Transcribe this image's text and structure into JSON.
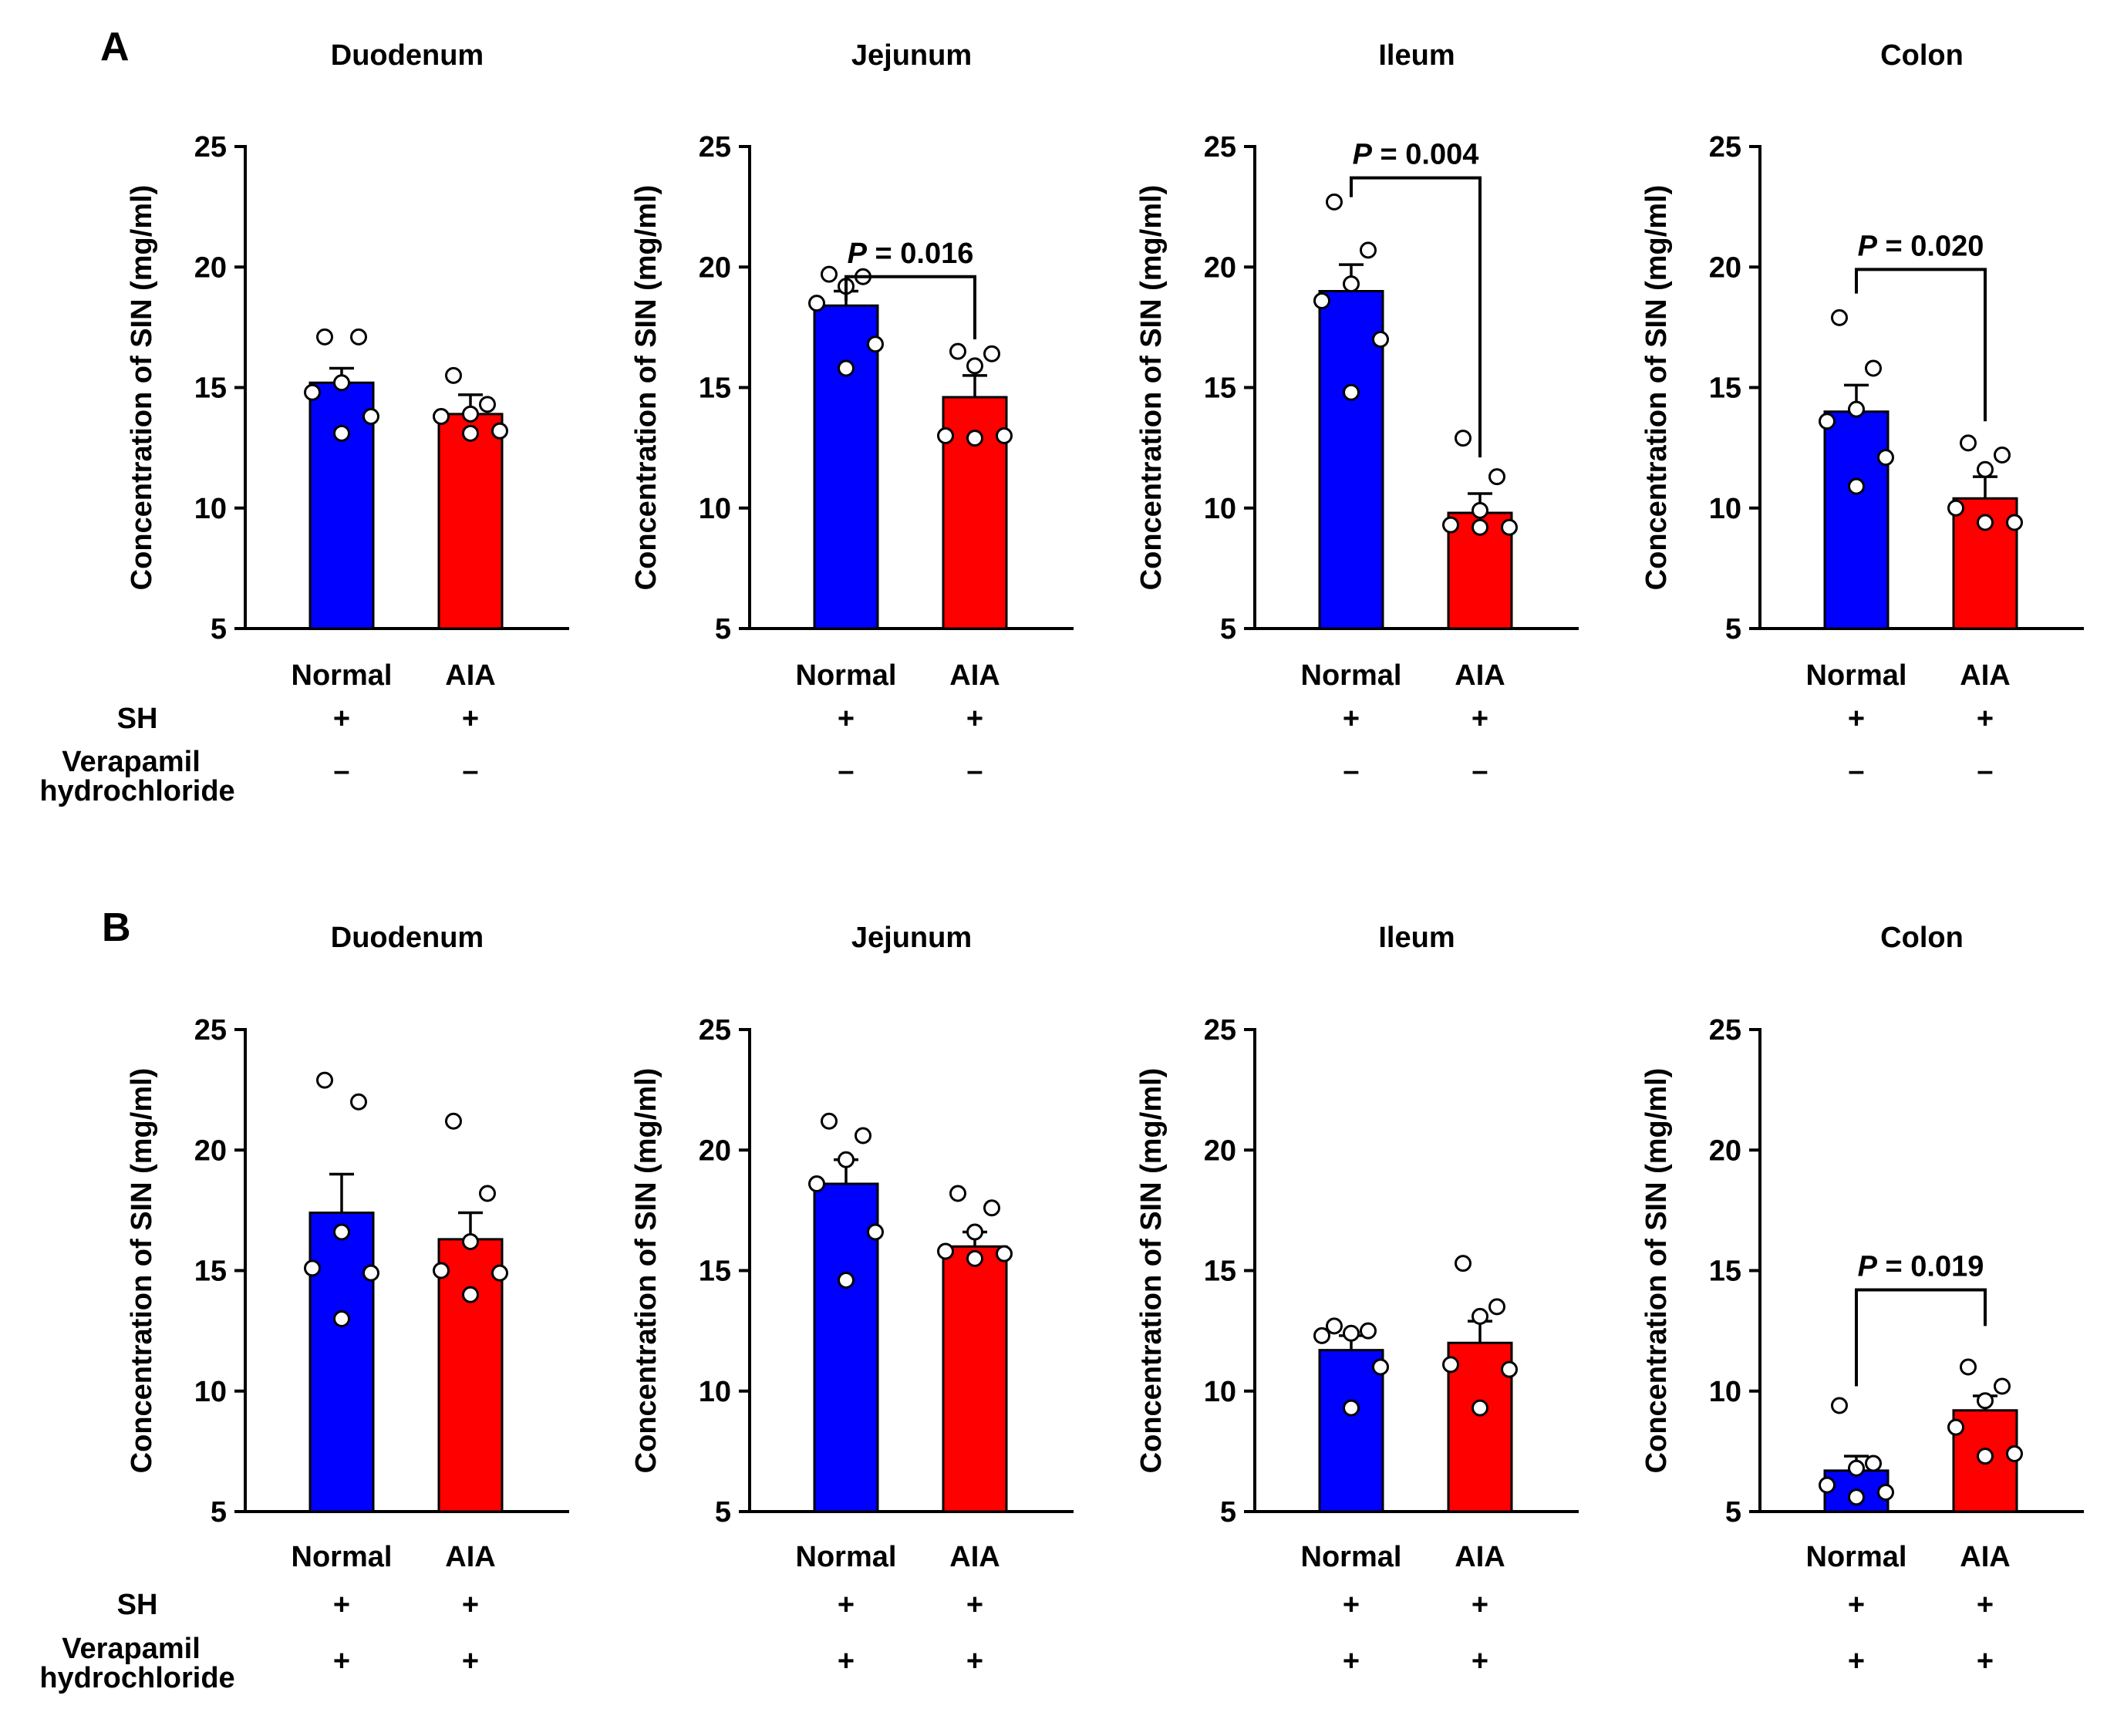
{
  "colors": {
    "normal": "#0000ff",
    "aia": "#ff0000",
    "axis": "#000000",
    "point_fill": "#ffffff"
  },
  "row_labels": {
    "sh": "SH",
    "verapamil_line1": "Verapamil",
    "verapamil_line2": "hydrochloride"
  },
  "chart_data": [
    {
      "panel": "A",
      "type": "bar",
      "title": "Duodenum",
      "ylabel": "Concentration of SIN (mg/ml)",
      "ylim": [
        5,
        25
      ],
      "yticks": [
        5,
        10,
        15,
        20,
        25
      ],
      "categories": [
        "Normal",
        "AIA"
      ],
      "values": [
        15.2,
        13.9
      ],
      "sem": [
        0.6,
        0.8
      ],
      "points": [
        [
          17.1,
          17.1,
          15.2,
          14.8,
          13.8,
          13.1
        ],
        [
          15.5,
          14.3,
          13.9,
          13.8,
          13.2,
          13.1
        ]
      ],
      "sh": [
        "+",
        "+"
      ],
      "verapamil": [
        "–",
        "–"
      ],
      "significance": null
    },
    {
      "panel": "A",
      "type": "bar",
      "title": "Jejunum",
      "ylabel": "Concentration of SIN (mg/ml)",
      "ylim": [
        5,
        25
      ],
      "yticks": [
        5,
        10,
        15,
        20,
        25
      ],
      "categories": [
        "Normal",
        "AIA"
      ],
      "values": [
        18.4,
        14.6
      ],
      "sem": [
        0.6,
        0.9
      ],
      "points": [
        [
          19.7,
          19.6,
          19.2,
          18.5,
          16.8,
          15.8
        ],
        [
          16.5,
          16.4,
          15.9,
          13.0,
          13.0,
          12.9
        ]
      ],
      "sh": [
        "+",
        "+"
      ],
      "verapamil": [
        "–",
        "–"
      ],
      "significance": {
        "prefix": "P",
        "text": " = 0.016",
        "bracket_y": 19.6,
        "end_y": [
          18.6,
          17.0
        ]
      }
    },
    {
      "panel": "A",
      "type": "bar",
      "title": "Ileum",
      "ylabel": "Concentration of SIN (mg/ml)",
      "ylim": [
        5,
        25
      ],
      "yticks": [
        5,
        10,
        15,
        20,
        25
      ],
      "categories": [
        "Normal",
        "AIA"
      ],
      "values": [
        19.0,
        9.8
      ],
      "sem": [
        1.1,
        0.8
      ],
      "points": [
        [
          22.7,
          20.7,
          19.3,
          18.6,
          17.0,
          14.8
        ],
        [
          12.9,
          11.3,
          9.9,
          9.3,
          9.2,
          9.2
        ]
      ],
      "sh": [
        "+",
        "+"
      ],
      "verapamil": [
        "–",
        "–"
      ],
      "significance": {
        "prefix": "P",
        "text": " = 0.004",
        "bracket_y": 23.7,
        "end_y": [
          22.9,
          12.1
        ]
      }
    },
    {
      "panel": "A",
      "type": "bar",
      "title": "Colon",
      "ylabel": "Concentration of SIN (mg/ml)",
      "ylim": [
        5,
        25
      ],
      "yticks": [
        5,
        10,
        15,
        20,
        25
      ],
      "categories": [
        "Normal",
        "AIA"
      ],
      "values": [
        14.0,
        10.4
      ],
      "sem": [
        1.1,
        0.9
      ],
      "points": [
        [
          17.9,
          15.8,
          14.1,
          13.6,
          12.1,
          10.9
        ],
        [
          12.7,
          12.2,
          11.6,
          10.0,
          9.4,
          9.4
        ]
      ],
      "sh": [
        "+",
        "+"
      ],
      "verapamil": [
        "–",
        "–"
      ],
      "significance": {
        "prefix": "P",
        "text": " = 0.020",
        "bracket_y": 19.9,
        "end_y": [
          18.9,
          13.6
        ]
      }
    },
    {
      "panel": "B",
      "type": "bar",
      "title": "Duodenum",
      "ylabel": "Concentration of SIN (mg/ml)",
      "ylim": [
        5,
        25
      ],
      "yticks": [
        5,
        10,
        15,
        20,
        25
      ],
      "categories": [
        "Normal",
        "AIA"
      ],
      "values": [
        17.4,
        16.3
      ],
      "sem": [
        1.6,
        1.1
      ],
      "points": [
        [
          22.9,
          22.0,
          16.6,
          15.1,
          14.9,
          13.0
        ],
        [
          21.2,
          18.2,
          16.2,
          15.0,
          14.9,
          14.0
        ]
      ],
      "sh": [
        "+",
        "+"
      ],
      "verapamil": [
        "+",
        "+"
      ],
      "significance": null
    },
    {
      "panel": "B",
      "type": "bar",
      "title": "Jejunum",
      "ylabel": "Concentration of SIN (mg/ml)",
      "ylim": [
        5,
        25
      ],
      "yticks": [
        5,
        10,
        15,
        20,
        25
      ],
      "categories": [
        "Normal",
        "AIA"
      ],
      "values": [
        18.6,
        16.0
      ],
      "sem": [
        1.0,
        0.6
      ],
      "points": [
        [
          21.2,
          20.6,
          19.6,
          18.6,
          16.6,
          14.6
        ],
        [
          18.2,
          17.6,
          16.6,
          15.8,
          15.7,
          15.5
        ]
      ],
      "sh": [
        "+",
        "+"
      ],
      "verapamil": [
        "+",
        "+"
      ],
      "significance": null
    },
    {
      "panel": "B",
      "type": "bar",
      "title": "Ileum",
      "ylabel": "Concentration of SIN (mg/ml)",
      "ylim": [
        5,
        25
      ],
      "yticks": [
        5,
        10,
        15,
        20,
        25
      ],
      "categories": [
        "Normal",
        "AIA"
      ],
      "values": [
        11.7,
        12.0
      ],
      "sem": [
        0.6,
        0.9
      ],
      "points": [
        [
          12.7,
          12.5,
          12.4,
          12.3,
          11.0,
          9.3
        ],
        [
          15.3,
          13.5,
          13.1,
          11.1,
          10.9,
          9.3
        ]
      ],
      "sh": [
        "+",
        "+"
      ],
      "verapamil": [
        "+",
        "+"
      ],
      "significance": null
    },
    {
      "panel": "B",
      "type": "bar",
      "title": "Colon",
      "ylabel": "Concentration of SIN (mg/ml)",
      "ylim": [
        5,
        25
      ],
      "yticks": [
        5,
        10,
        15,
        20,
        25
      ],
      "categories": [
        "Normal",
        "AIA"
      ],
      "values": [
        6.7,
        9.2
      ],
      "sem": [
        0.6,
        0.6
      ],
      "points": [
        [
          9.4,
          7.0,
          6.8,
          6.1,
          5.8,
          5.6
        ],
        [
          11.0,
          10.2,
          9.6,
          8.5,
          7.4,
          7.3
        ]
      ],
      "sh": [
        "+",
        "+"
      ],
      "verapamil": [
        "+",
        "+"
      ],
      "significance": {
        "prefix": "P",
        "text": " = 0.019",
        "bracket_y": 14.2,
        "end_y": [
          10.2,
          12.7
        ]
      }
    }
  ]
}
